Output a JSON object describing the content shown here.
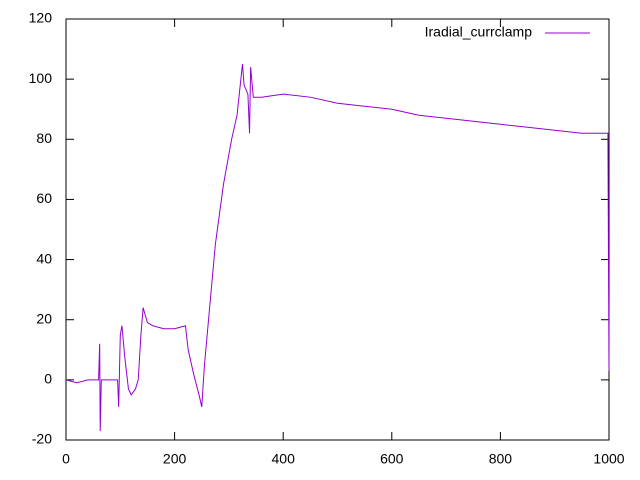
{
  "chart_data": {
    "type": "line",
    "x": [
      0,
      20,
      40,
      60,
      62,
      63,
      65,
      80,
      95,
      97,
      100,
      103,
      108,
      115,
      120,
      128,
      133,
      138,
      142,
      150,
      160,
      180,
      200,
      220,
      225,
      235,
      245,
      250,
      255,
      265,
      275,
      290,
      305,
      315,
      325,
      328,
      335,
      338,
      340,
      345,
      360,
      400,
      450,
      500,
      550,
      600,
      650,
      700,
      750,
      800,
      850,
      900,
      950,
      990,
      998,
      1000
    ],
    "series": [
      {
        "name": "Iradial_currclamp",
        "color": "#9400d3",
        "values": [
          0,
          -1,
          0,
          0,
          12,
          -17,
          0,
          0,
          0,
          -9,
          15,
          18,
          8,
          -3,
          -5,
          -3,
          0,
          15,
          24,
          19,
          18,
          17,
          17,
          18,
          10,
          2,
          -5,
          -9,
          5,
          25,
          45,
          65,
          80,
          88,
          105,
          98,
          95,
          82,
          104,
          94,
          94,
          95,
          94,
          92,
          91,
          90,
          88,
          87,
          86,
          85,
          84,
          83,
          82,
          82,
          82,
          3
        ]
      }
    ],
    "xlim": [
      0,
      1000
    ],
    "xticks": [
      0,
      200,
      400,
      600,
      800,
      1000
    ],
    "ylim": [
      -20,
      120
    ],
    "yticks": [
      -20,
      0,
      20,
      40,
      60,
      80,
      100,
      120
    ],
    "legend": "top-right"
  }
}
